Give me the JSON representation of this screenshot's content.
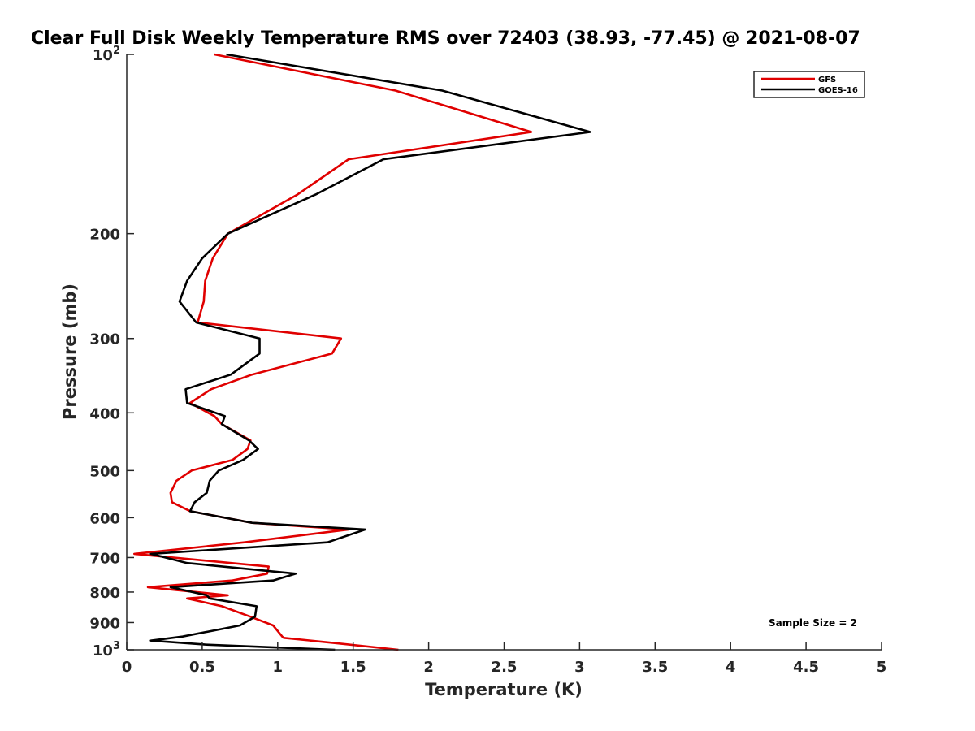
{
  "chart_data": {
    "type": "line",
    "title": "Clear Full Disk Weekly Temperature RMS over 72403 (38.93, -77.45) @ 2021-08-07",
    "xlabel": "Temperature (K)",
    "ylabel": "Pressure (mb)",
    "xlim": [
      0,
      5
    ],
    "ylim": [
      1000,
      100
    ],
    "yscale": "log",
    "y_reversed": true,
    "x_ticks": [
      "0",
      "0.5",
      "1",
      "1.5",
      "2",
      "2.5",
      "3",
      "3.5",
      "4",
      "4.5",
      "5"
    ],
    "y_ticks": [
      {
        "value": 100,
        "base": "10",
        "exp": "2"
      },
      {
        "value": 200,
        "label": "200"
      },
      {
        "value": 300,
        "label": "300"
      },
      {
        "value": 400,
        "label": "400"
      },
      {
        "value": 500,
        "label": "500"
      },
      {
        "value": 600,
        "label": "600"
      },
      {
        "value": 700,
        "label": "700"
      },
      {
        "value": 800,
        "label": "800"
      },
      {
        "value": 900,
        "label": "900"
      },
      {
        "value": 1000,
        "base": "10",
        "exp": "3"
      }
    ],
    "grid": false,
    "legend_position": "top-right",
    "annotation": "Sample Size = 2",
    "series": [
      {
        "name": "GFS",
        "color": "#e00000",
        "x": [
          0.58,
          1.78,
          2.68,
          1.47,
          1.13,
          0.67,
          0.57,
          0.52,
          0.51,
          0.47,
          1.42,
          1.36,
          0.83,
          0.56,
          0.42,
          0.58,
          0.63,
          0.82,
          0.8,
          0.7,
          0.43,
          0.33,
          0.29,
          0.3,
          0.42,
          0.83,
          1.47,
          0.78,
          0.05,
          0.94,
          0.93,
          0.7,
          0.14,
          0.67,
          0.4,
          0.63,
          0.82,
          0.97,
          1.03,
          1.04,
          1.39,
          1.8
        ],
        "y": [
          100,
          115,
          135,
          150,
          172,
          200,
          220,
          240,
          260,
          282,
          300,
          318,
          345,
          365,
          385,
          405,
          418,
          445,
          460,
          480,
          500,
          520,
          545,
          565,
          585,
          612,
          628,
          660,
          690,
          725,
          745,
          765,
          785,
          810,
          820,
          845,
          880,
          910,
          950,
          955,
          975,
          1000
        ]
      },
      {
        "name": "GOES-16",
        "color": "#000000",
        "x": [
          0.66,
          2.09,
          3.07,
          1.7,
          1.25,
          0.67,
          0.5,
          0.4,
          0.35,
          0.46,
          0.88,
          0.88,
          0.69,
          0.39,
          0.4,
          0.65,
          0.63,
          0.81,
          0.87,
          0.77,
          0.61,
          0.55,
          0.53,
          0.45,
          0.42,
          0.83,
          1.58,
          1.33,
          0.16,
          0.4,
          1.12,
          0.97,
          0.29,
          0.53,
          0.55,
          0.86,
          0.85,
          0.75,
          0.37,
          0.16,
          0.52,
          1.38
        ],
        "y": [
          100,
          115,
          135,
          150,
          172,
          200,
          220,
          240,
          260,
          282,
          300,
          318,
          345,
          365,
          385,
          405,
          418,
          445,
          460,
          480,
          500,
          520,
          545,
          565,
          585,
          612,
          628,
          660,
          690,
          715,
          745,
          765,
          785,
          810,
          820,
          845,
          880,
          910,
          950,
          965,
          980,
          1000
        ]
      }
    ]
  }
}
